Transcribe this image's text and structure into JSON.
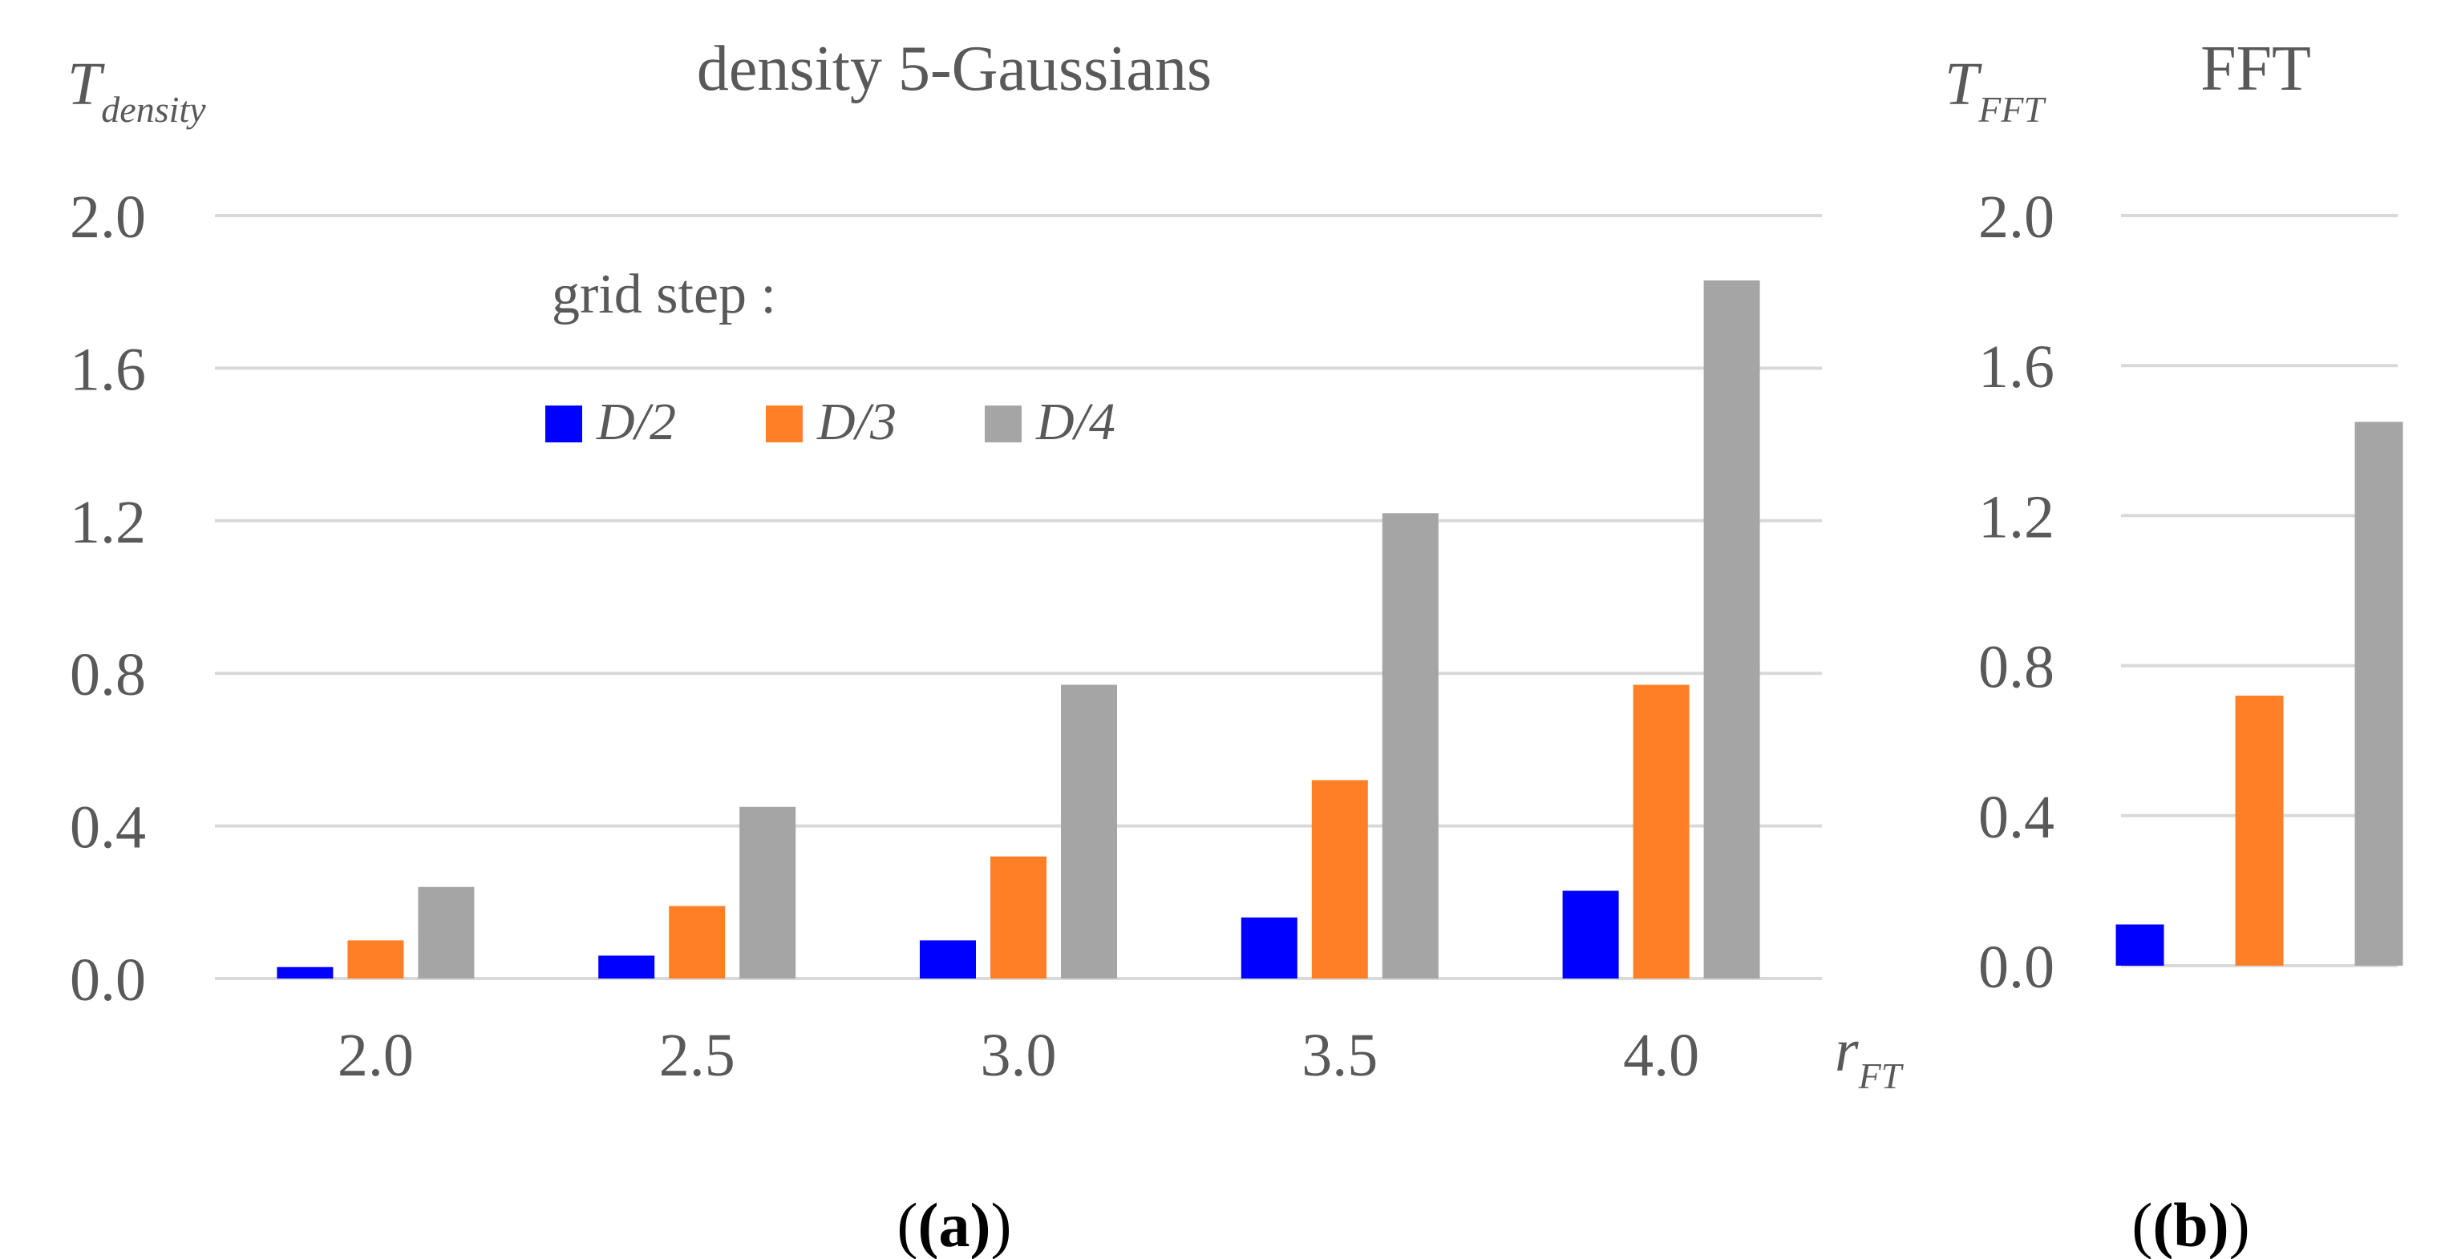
{
  "chart_data": [
    {
      "panel_label": "(a)",
      "type": "bar",
      "title": "density 5-Gaussians",
      "ylabel": "T",
      "ylabel_sub": "density",
      "xlabel": "r",
      "xlabel_sub": "FT",
      "ylim": [
        0,
        2.0
      ],
      "yticks": [
        "0.0",
        "0.4",
        "0.8",
        "1.2",
        "1.6",
        "2.0"
      ],
      "categories": [
        "2.0",
        "2.5",
        "3.0",
        "3.5",
        "4.0"
      ],
      "legend_title": "grid step :",
      "series": [
        {
          "name": "D/2",
          "color": "#0000ff",
          "values": [
            0.03,
            0.06,
            0.1,
            0.16,
            0.23
          ]
        },
        {
          "name": "D/3",
          "color": "#ff7f27",
          "values": [
            0.1,
            0.19,
            0.32,
            0.52,
            0.77
          ]
        },
        {
          "name": "D/4",
          "color": "#a5a5a5",
          "values": [
            0.24,
            0.45,
            0.77,
            1.22,
            1.83
          ]
        }
      ]
    },
    {
      "panel_label": "(b)",
      "type": "bar",
      "title": "FFT",
      "ylabel": "T",
      "ylabel_sub": "FFT",
      "ylim": [
        0,
        2.0
      ],
      "yticks": [
        "0.0",
        "0.4",
        "0.8",
        "1.2",
        "1.6",
        "2.0"
      ],
      "categories": [
        ""
      ],
      "series": [
        {
          "name": "D/2",
          "color": "#0000ff",
          "values": [
            0.11
          ]
        },
        {
          "name": "D/3",
          "color": "#ff7f27",
          "values": [
            0.72
          ]
        },
        {
          "name": "D/4",
          "color": "#a5a5a5",
          "values": [
            1.45
          ]
        }
      ]
    }
  ]
}
